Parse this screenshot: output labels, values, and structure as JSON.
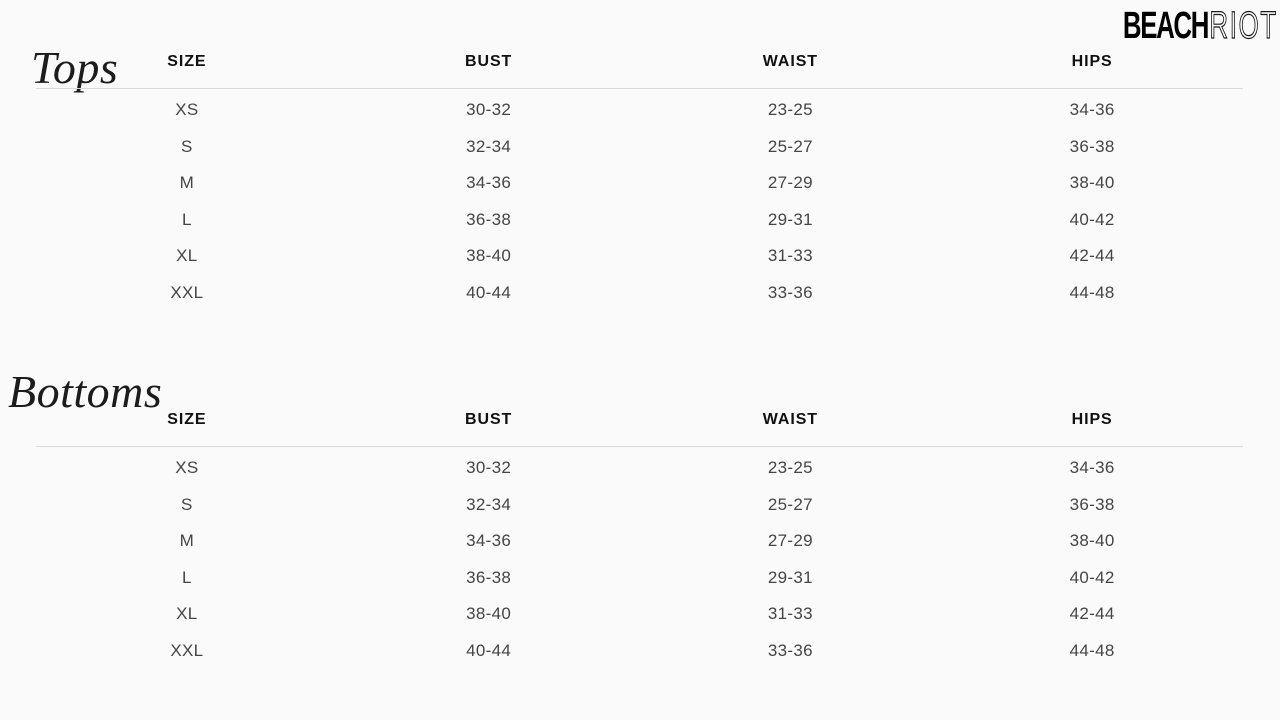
{
  "brand": {
    "logo_bold": "BEACH",
    "logo_light": "RIOT"
  },
  "colors": {
    "background": "#fafafa",
    "title_text": "#1c1c1c",
    "header_text": "#111111",
    "cell_text": "#454545",
    "divider": "#d9d9d9",
    "logo": "#000000"
  },
  "sections": [
    {
      "title": "Tops",
      "table": {
        "headers": [
          "SIZE",
          "BUST",
          "WAIST",
          "HIPS"
        ],
        "rows": [
          {
            "size": "XS",
            "bust": "30-32",
            "waist": "23-25",
            "hips": "34-36"
          },
          {
            "size": "S",
            "bust": "32-34",
            "waist": "25-27",
            "hips": "36-38"
          },
          {
            "size": "M",
            "bust": "34-36",
            "waist": "27-29",
            "hips": "38-40"
          },
          {
            "size": "L",
            "bust": "36-38",
            "waist": "29-31",
            "hips": "40-42"
          },
          {
            "size": "XL",
            "bust": "38-40",
            "waist": "31-33",
            "hips": "42-44"
          },
          {
            "size": "XXL",
            "bust": "40-44",
            "waist": "33-36",
            "hips": "44-48"
          }
        ]
      }
    },
    {
      "title": "Bottoms",
      "table": {
        "headers": [
          "SIZE",
          "BUST",
          "WAIST",
          "HIPS"
        ],
        "rows": [
          {
            "size": "XS",
            "bust": "30-32",
            "waist": "23-25",
            "hips": "34-36"
          },
          {
            "size": "S",
            "bust": "32-34",
            "waist": "25-27",
            "hips": "36-38"
          },
          {
            "size": "M",
            "bust": "34-36",
            "waist": "27-29",
            "hips": "38-40"
          },
          {
            "size": "L",
            "bust": "36-38",
            "waist": "29-31",
            "hips": "40-42"
          },
          {
            "size": "XL",
            "bust": "38-40",
            "waist": "31-33",
            "hips": "42-44"
          },
          {
            "size": "XXL",
            "bust": "40-44",
            "waist": "33-36",
            "hips": "44-48"
          }
        ]
      }
    }
  ]
}
